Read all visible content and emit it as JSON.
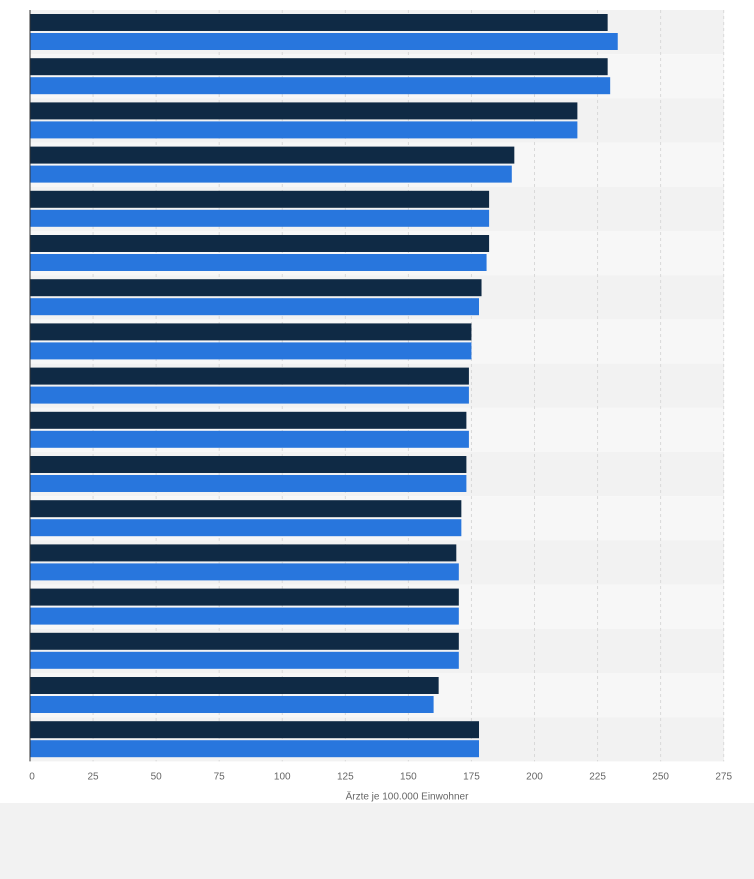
{
  "colors": {
    "series_dark": "#0f2a45",
    "series_blue": "#2876dd",
    "row_band_a": "#f2f2f2",
    "row_band_b": "#f7f7f7",
    "grid": "#d9d9d9",
    "axis_text": "#666666"
  },
  "chart_data": {
    "type": "bar",
    "orientation": "horizontal",
    "title": "",
    "xlabel": "Ärzte je 100.000 Einwohner",
    "ylabel": "",
    "xlim": [
      0,
      275
    ],
    "x_ticks": [
      "0",
      "25",
      "50",
      "75",
      "100",
      "125",
      "150",
      "175",
      "200",
      "225",
      "250",
      "275"
    ],
    "grid": "vertical",
    "legend": "none",
    "categories": [
      "",
      "",
      "",
      "",
      "",
      "",
      "",
      "",
      "",
      "",
      "",
      "",
      "",
      "",
      "",
      "",
      ""
    ],
    "series": [
      {
        "color": "#0f2a45",
        "values": [
          229,
          229,
          217,
          192,
          182,
          182,
          179,
          175,
          174,
          173,
          173,
          171,
          169,
          170,
          170,
          162,
          178
        ]
      },
      {
        "color": "#2876dd",
        "values": [
          233,
          230,
          217,
          191,
          182,
          181,
          178,
          175,
          174,
          174,
          173,
          171,
          170,
          170,
          170,
          160,
          178
        ]
      }
    ]
  }
}
